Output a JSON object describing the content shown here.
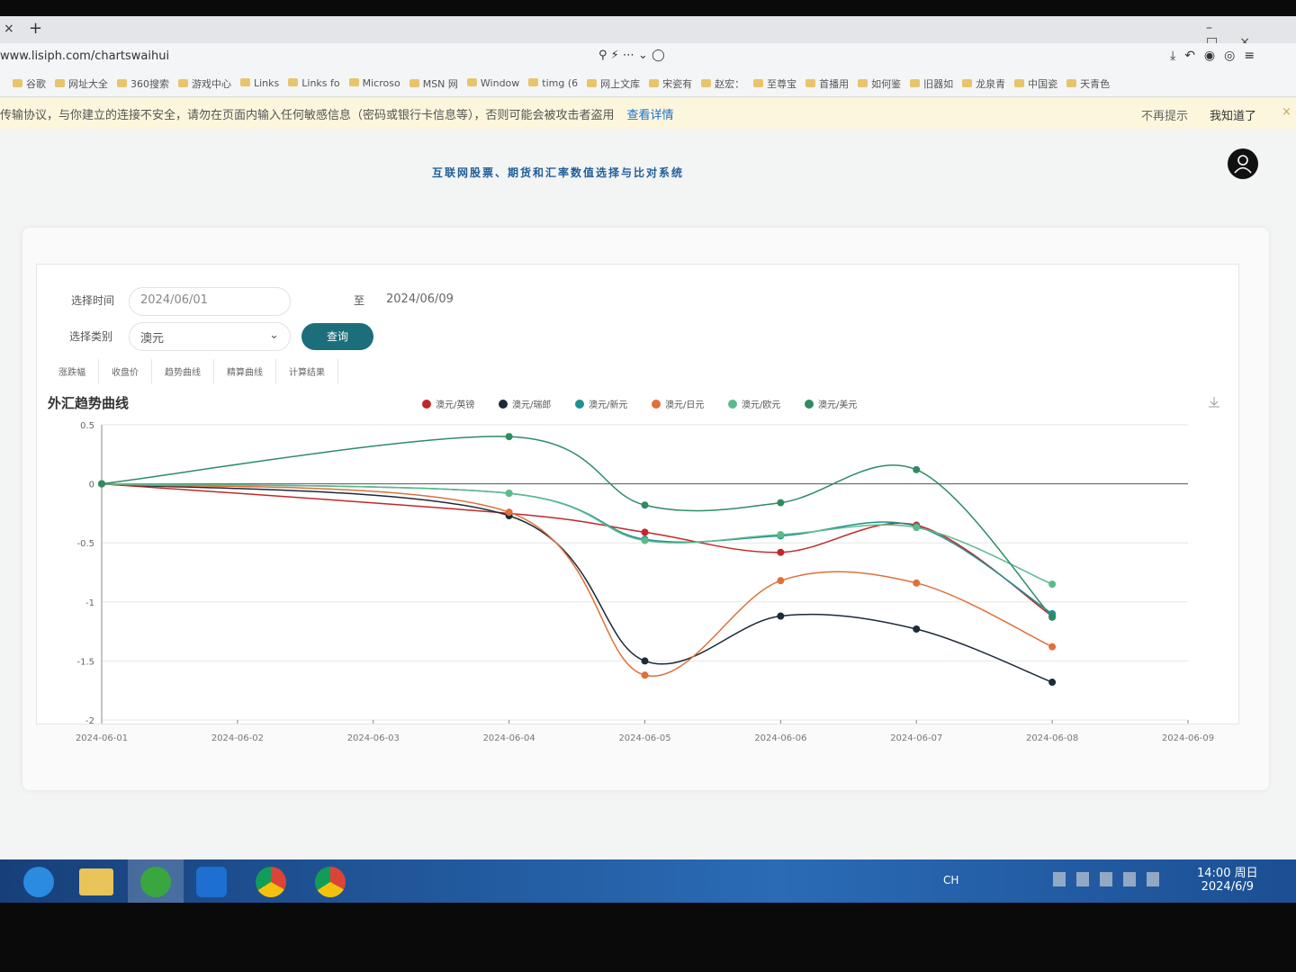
{
  "browser": {
    "url": "www.lisiph.com/chartswaihui",
    "bookmarks": [
      "谷歌",
      "网址大全",
      "360搜索",
      "游戏中心",
      "Links",
      "Links fo",
      "Microso",
      "MSN 网",
      "Window",
      "timg (6",
      "网上文库",
      "宋瓷有",
      "赵宏：",
      "至尊宝",
      "首播用",
      "如何鉴",
      "旧器如",
      "龙泉青",
      "中国瓷",
      "天青色"
    ],
    "warning": "传输协议，与你建立的连接不安全，请勿在页面内输入任何敏感信息（密码或银行卡信息等），否则可能会被攻击者盗用",
    "warning_link": "查看详情",
    "dismiss": "不再提示",
    "ok": "我知道了"
  },
  "header": {
    "title": "互联网股票、期货和汇率数值选择与比对系统"
  },
  "form": {
    "time_label": "选择时间",
    "start": "2024/06/01",
    "to": "至",
    "end": "2024/06/09",
    "category_label": "选择类别",
    "category": "澳元",
    "query": "查询"
  },
  "tabs": [
    "涨跌幅",
    "收盘价",
    "趋势曲线",
    "精算曲线",
    "计算结果"
  ],
  "chart_data": {
    "type": "line",
    "title": "外汇趋势曲线",
    "smooth": true,
    "x": [
      "2024-06-01",
      "2024-06-04",
      "2024-06-05",
      "2024-06-06",
      "2024-06-07",
      "2024-06-08"
    ],
    "xlim": [
      "2024-06-01",
      "2024-06-09"
    ],
    "xticks": [
      "2024-06-01",
      "2024-06-02",
      "2024-06-03",
      "2024-06-04",
      "2024-06-05",
      "2024-06-06",
      "2024-06-07",
      "2024-06-08",
      "2024-06-09"
    ],
    "ylim": [
      -2,
      0.5
    ],
    "yticks": [
      0.5,
      0,
      -0.5,
      -1,
      -1.5,
      -2
    ],
    "grid": true,
    "series": [
      {
        "name": "澳元/英镑",
        "color": "#c0282c",
        "values": [
          0,
          -0.25,
          -0.41,
          -0.58,
          -0.35,
          -1.12
        ]
      },
      {
        "name": "澳元/瑞郎",
        "color": "#1c2a3a",
        "values": [
          0,
          -0.27,
          -1.5,
          -1.12,
          -1.23,
          -1.68
        ]
      },
      {
        "name": "澳元/新元",
        "color": "#1f8f8f",
        "values": [
          0,
          -0.08,
          -0.47,
          -0.44,
          -0.36,
          -1.1
        ]
      },
      {
        "name": "澳元/日元",
        "color": "#e0703a",
        "values": [
          0,
          -0.24,
          -1.62,
          -0.82,
          -0.84,
          -1.38
        ]
      },
      {
        "name": "澳元/欧元",
        "color": "#5dba8c",
        "values": [
          0,
          -0.08,
          -0.48,
          -0.43,
          -0.37,
          -0.85
        ]
      },
      {
        "name": "澳元/美元",
        "color": "#2e8b62",
        "values": [
          0,
          0.4,
          -0.18,
          -0.16,
          0.12,
          -1.13
        ]
      }
    ]
  },
  "taskbar": {
    "lang": "CH",
    "time": "14:00 周日",
    "date": "2024/6/9"
  }
}
